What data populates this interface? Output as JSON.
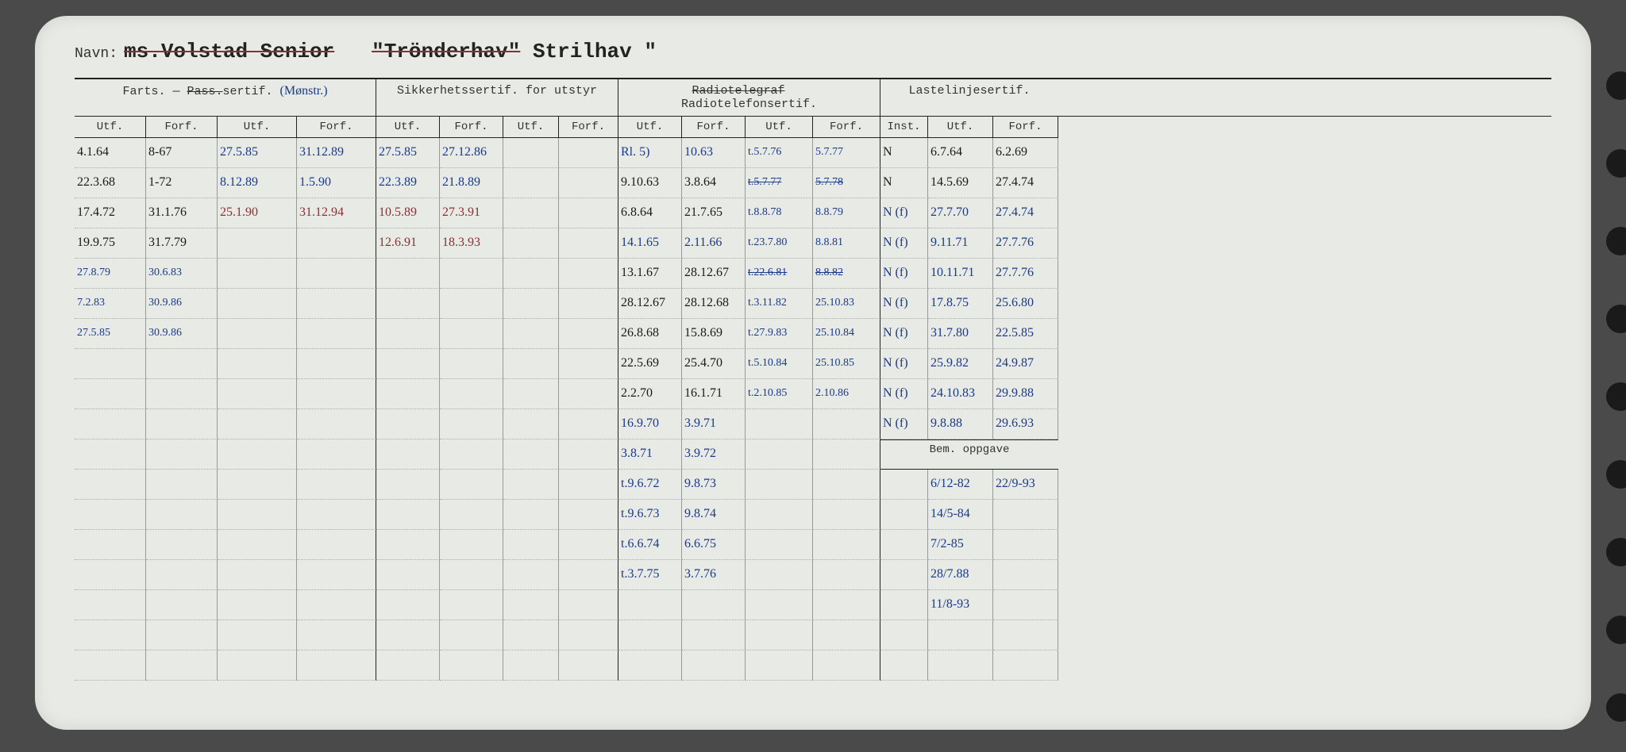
{
  "labels": {
    "navn": "Navn:",
    "quote1": "\"",
    "title_struck1": "ms.Volstad Senior",
    "title_struck2": "\"Trönderhav\"",
    "title_current": "Strilhav",
    "quote2": "\""
  },
  "sections": {
    "farts": "Farts. —",
    "farts_struck": "Pass.",
    "farts_tail": "sertif.",
    "farts_note": "(Mønstr.)",
    "sikker": "Sikkerhetssertif. for utstyr",
    "radio_struck": "Radiotelegraf",
    "radio": "Radiotelefonsertif.",
    "laste": "Lastelinjesertif.",
    "bem": "Bem. oppgave"
  },
  "subheaders": {
    "utf": "Utf.",
    "forf": "Forf.",
    "inst": "Inst."
  },
  "rows": {
    "farts_a": [
      {
        "utf": "4.1.64",
        "forf": "8-67"
      },
      {
        "utf": "22.3.68",
        "forf": "1-72"
      },
      {
        "utf": "17.4.72",
        "forf": "31.1.76"
      },
      {
        "utf": "19.9.75",
        "forf": "31.7.79"
      },
      {
        "utf": "27.8.79",
        "forf": "30.6.83",
        "cls": "blue small"
      },
      {
        "utf": "7.2.83",
        "forf": "30.9.86",
        "cls": "blue small"
      },
      {
        "utf": "27.5.85",
        "forf": "30.9.86",
        "cls": "blue small"
      }
    ],
    "farts_b": [
      {
        "utf": "27.5.85",
        "forf": "31.12.89",
        "cls": "blue"
      },
      {
        "utf": "8.12.89",
        "forf": "1.5.90",
        "cls": "blue"
      },
      {
        "utf": "25.1.90",
        "forf": "31.12.94",
        "cls": "red"
      }
    ],
    "sikker": [
      {
        "utf": "27.5.85",
        "forf": "27.12.86",
        "cls": "blue"
      },
      {
        "utf": "22.3.89",
        "forf": "21.8.89",
        "cls": "blue"
      },
      {
        "utf": "10.5.89",
        "forf": "27.3.91",
        "cls": "red"
      },
      {
        "utf": "12.6.91",
        "forf": "18.3.93",
        "cls": "red"
      }
    ],
    "radio_a": [
      {
        "utf": "Rl. 5)",
        "forf": "10.63",
        "cls": "blue"
      },
      {
        "utf": "9.10.63",
        "forf": "3.8.64"
      },
      {
        "utf": "6.8.64",
        "forf": "21.7.65"
      },
      {
        "utf": "14.1.65",
        "forf": "2.11.66",
        "cls": "blue"
      },
      {
        "utf": "13.1.67",
        "forf": "28.12.67"
      },
      {
        "utf": "28.12.67",
        "forf": "28.12.68"
      },
      {
        "utf": "26.8.68",
        "forf": "15.8.69"
      },
      {
        "utf": "22.5.69",
        "forf": "25.4.70"
      },
      {
        "utf": "2.2.70",
        "forf": "16.1.71"
      },
      {
        "utf": "16.9.70",
        "forf": "3.9.71",
        "cls": "blue"
      },
      {
        "utf": "3.8.71",
        "forf": "3.9.72",
        "cls": "blue"
      },
      {
        "utf": "t.9.6.72",
        "forf": "9.8.73",
        "cls": "blue"
      },
      {
        "utf": "t.9.6.73",
        "forf": "9.8.74",
        "cls": "blue"
      },
      {
        "utf": "t.6.6.74",
        "forf": "6.6.75",
        "cls": "blue"
      },
      {
        "utf": "t.3.7.75",
        "forf": "3.7.76",
        "cls": "blue"
      }
    ],
    "radio_b": [
      {
        "utf": "t.5.7.76",
        "forf": "5.7.77",
        "cls": "blue"
      },
      {
        "utf": "t.5.7.77",
        "forf": "5.7.78",
        "cls": "blue strikecell"
      },
      {
        "utf": "t.8.8.78",
        "forf": "8.8.79",
        "cls": "blue"
      },
      {
        "utf": "t.23.7.80",
        "forf": "8.8.81",
        "cls": "blue"
      },
      {
        "utf": "t.22.6.81",
        "forf": "8.8.82",
        "cls": "blue strikecell"
      },
      {
        "utf": "t.3.11.82",
        "forf": "25.10.83",
        "cls": "blue"
      },
      {
        "utf": "t.27.9.83",
        "forf": "25.10.84",
        "cls": "blue"
      },
      {
        "utf": "t.5.10.84",
        "forf": "25.10.85",
        "cls": "blue small"
      },
      {
        "utf": "t.2.10.85",
        "forf": "2.10.86",
        "cls": "blue"
      }
    ],
    "laste": [
      {
        "inst": "N",
        "utf": "6.7.64",
        "forf": "6.2.69"
      },
      {
        "inst": "N",
        "utf": "14.5.69",
        "forf": "27.4.74"
      },
      {
        "inst": "N (f)",
        "utf": "27.7.70",
        "forf": "27.4.74",
        "cls": "blue"
      },
      {
        "inst": "N (f)",
        "utf": "9.11.71",
        "forf": "27.7.76",
        "cls": "blue"
      },
      {
        "inst": "N (f)",
        "utf": "10.11.71",
        "forf": "27.7.76",
        "cls": "blue"
      },
      {
        "inst": "N (f)",
        "utf": "17.8.75",
        "forf": "25.6.80",
        "cls": "blue"
      },
      {
        "inst": "N (f)",
        "utf": "31.7.80",
        "forf": "22.5.85",
        "cls": "blue"
      },
      {
        "inst": "N (f)",
        "utf": "25.9.82",
        "forf": "24.9.87",
        "cls": "blue"
      },
      {
        "inst": "N (f)",
        "utf": "24.10.83",
        "forf": "29.9.88",
        "cls": "blue"
      },
      {
        "inst": "N (f)",
        "utf": "9.8.88",
        "forf": "29.6.93",
        "cls": "blue"
      }
    ],
    "bem": [
      {
        "a": "6/12-82",
        "b": "22/9-93",
        "cls": "blue"
      },
      {
        "a": "14/5-84",
        "b": "",
        "cls": "blue"
      },
      {
        "a": "7/2-85",
        "b": "",
        "cls": "blue"
      },
      {
        "a": "28/7.88",
        "b": "",
        "cls": "blue"
      },
      {
        "a": "11/8-93",
        "b": "",
        "cls": "blue"
      }
    ]
  },
  "colors": {
    "card_bg": "#e8eae6",
    "line": "#222222",
    "dotline": "#aaaaaa",
    "ink_blue": "#1a3a8a",
    "ink_black": "#1a1a1a",
    "ink_red": "#8a3030"
  }
}
